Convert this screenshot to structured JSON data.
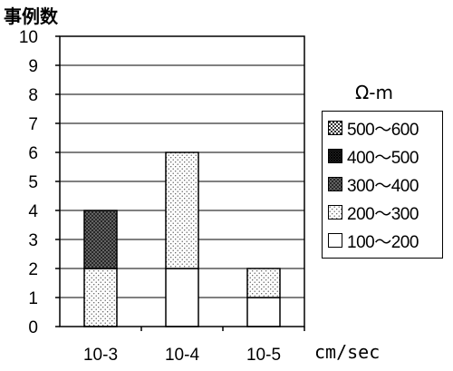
{
  "chart_data": {
    "type": "bar",
    "stacked": true,
    "ylabel": "事例数",
    "xlabel": "cm/sec",
    "ylim": [
      0,
      10
    ],
    "yticks": [
      "0",
      "1",
      "2",
      "3",
      "4",
      "5",
      "6",
      "7",
      "8",
      "9",
      "10"
    ],
    "grid": true,
    "categories": [
      "10-3",
      "10-4",
      "10-5"
    ],
    "legend_title": "Ω-m",
    "legend_position": "right",
    "series": [
      {
        "name": "100～200",
        "pattern": "plain",
        "values": [
          0,
          2,
          1
        ]
      },
      {
        "name": "200～300",
        "pattern": "fine-dots",
        "values": [
          2,
          4,
          1
        ]
      },
      {
        "name": "300～400",
        "pattern": "crosshatch",
        "values": [
          2,
          0,
          0
        ]
      },
      {
        "name": "400～500",
        "pattern": "dense-hatch",
        "values": [
          0,
          0,
          0
        ]
      },
      {
        "name": "500～600",
        "pattern": "checker",
        "values": [
          0,
          0,
          0
        ]
      }
    ],
    "legend_order": [
      "500～600",
      "400～500",
      "300～400",
      "200～300",
      "100～200"
    ]
  }
}
